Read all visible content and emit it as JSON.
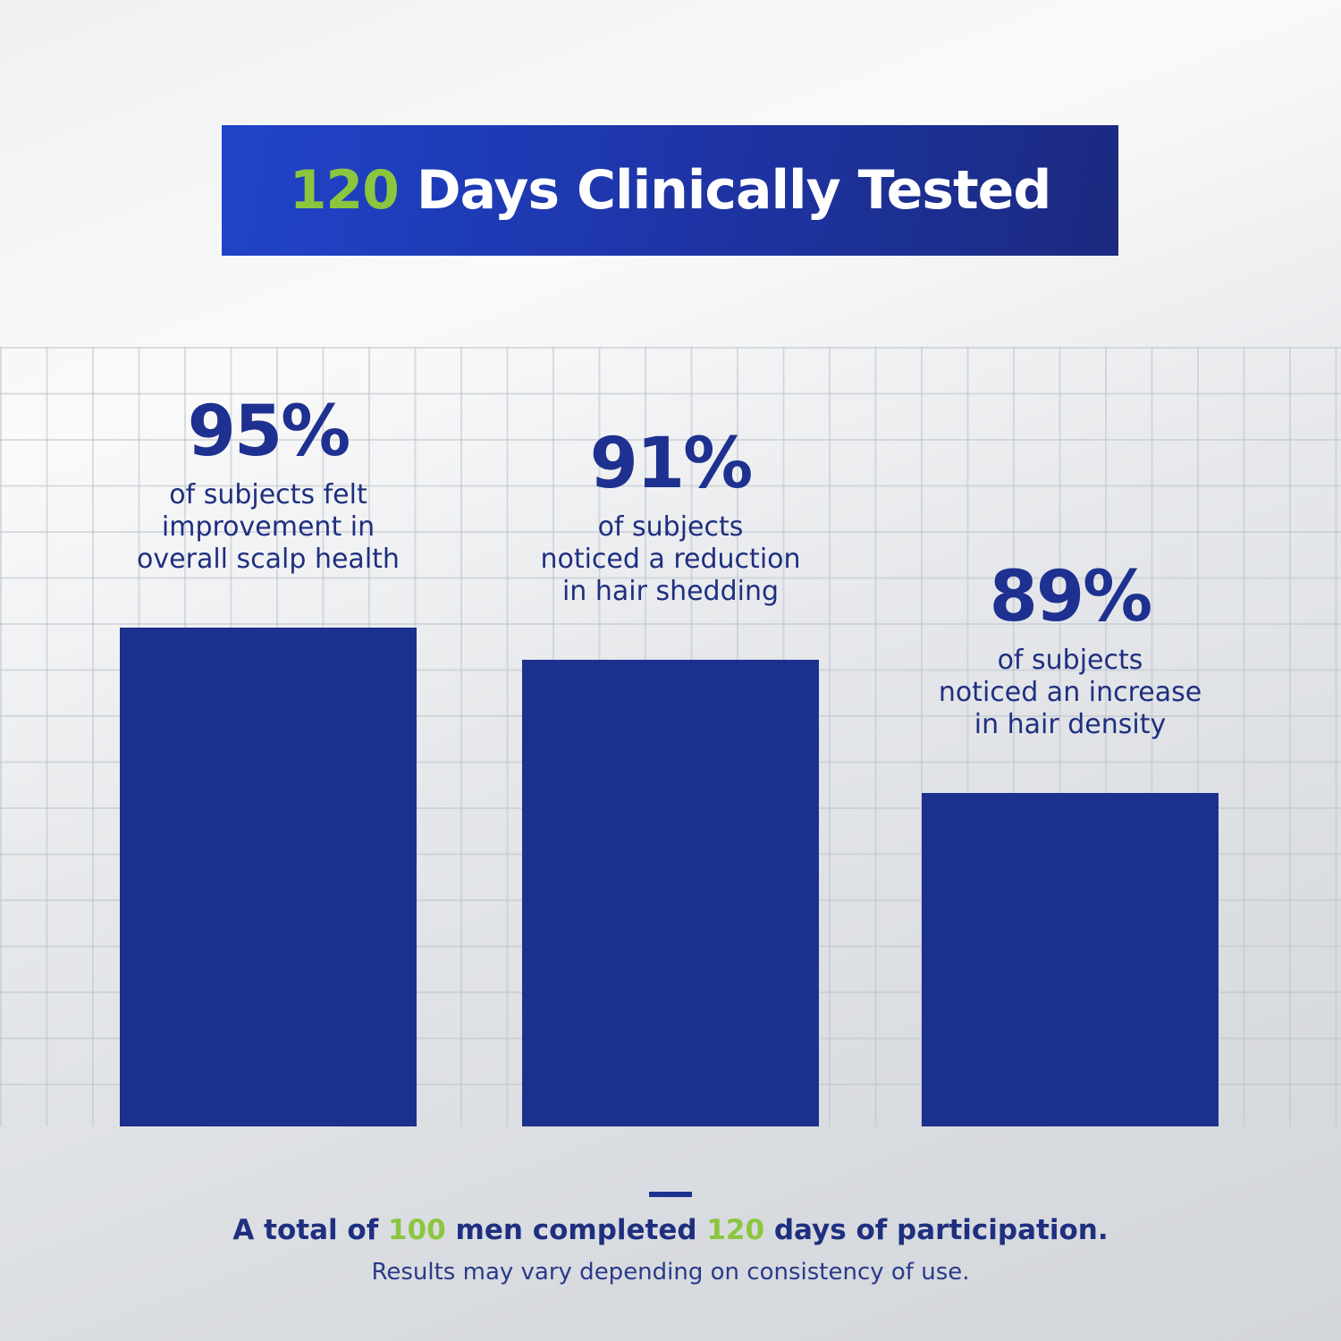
{
  "title": {
    "highlight": "120",
    "text": " Days Clinically Tested"
  },
  "colors": {
    "bar": "#1c318e",
    "accent_green": "#8cc63f",
    "title_bg": "#1e35a8",
    "text": "#1f2f80"
  },
  "chart_data": {
    "type": "bar",
    "categories": [
      "of subjects felt improvement in overall scalp health",
      "of subjects noticed a reduction in hair shedding",
      "of subjects noticed an increase in hair density"
    ],
    "values": [
      95,
      91,
      89
    ],
    "value_labels": [
      "95%",
      "91%",
      "89%"
    ],
    "desc_lines": [
      [
        "of subjects felt",
        "improvement in",
        "overall scalp health"
      ],
      [
        "of subjects",
        "noticed a reduction",
        "in hair shedding"
      ],
      [
        "of subjects",
        "noticed an increase",
        "in hair density"
      ]
    ],
    "grid": true
  },
  "footer": {
    "parts": [
      "A total of ",
      "100",
      " men completed ",
      "120",
      " days of participation."
    ],
    "note": "Results may vary depending on consistency of use."
  }
}
